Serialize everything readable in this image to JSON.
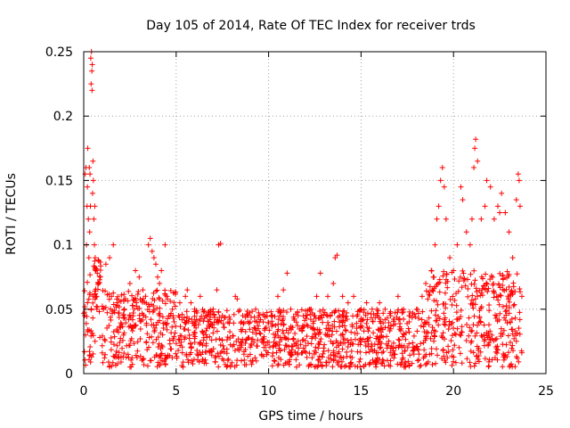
{
  "chart_data": {
    "type": "scatter",
    "title": "Day 105 of 2014, Rate Of TEC Index for receiver trds",
    "xlabel": "GPS time / hours",
    "ylabel": "ROTI / TECUs",
    "xlim": [
      0,
      25
    ],
    "ylim": [
      0,
      0.25
    ],
    "xticks": [
      0,
      5,
      10,
      15,
      20,
      25
    ],
    "xtick_labels": [
      "0",
      "5",
      "10",
      "15",
      "20",
      "25"
    ],
    "yticks": [
      0,
      0.05,
      0.1,
      0.15,
      0.2,
      0.25
    ],
    "ytick_labels": [
      "0",
      "0.05",
      "0.1",
      "0.15",
      "0.2",
      "0.25"
    ],
    "grid": true,
    "marker": "+",
    "color": "#ff0000",
    "series": [
      {
        "name": "ROTI",
        "points": [
          [
            0.05,
            0.045
          ],
          [
            0.08,
            0.155
          ],
          [
            0.1,
            0.03
          ],
          [
            0.12,
            0.16
          ],
          [
            0.15,
            0.1
          ],
          [
            0.18,
            0.13
          ],
          [
            0.2,
            0.145
          ],
          [
            0.22,
            0.175
          ],
          [
            0.25,
            0.12
          ],
          [
            0.28,
            0.09
          ],
          [
            0.3,
            0.16
          ],
          [
            0.32,
            0.11
          ],
          [
            0.34,
            0.155
          ],
          [
            0.36,
            0.13
          ],
          [
            0.38,
            0.245
          ],
          [
            0.4,
            0.225
          ],
          [
            0.42,
            0.25
          ],
          [
            0.44,
            0.235
          ],
          [
            0.45,
            0.22
          ],
          [
            0.46,
            0.24
          ],
          [
            0.48,
            0.14
          ],
          [
            0.5,
            0.165
          ],
          [
            0.52,
            0.15
          ],
          [
            0.55,
            0.12
          ],
          [
            0.58,
            0.1
          ],
          [
            0.6,
            0.13
          ],
          [
            0.62,
            0.09
          ],
          [
            0.65,
            0.08
          ],
          [
            0.7,
            0.06
          ],
          [
            0.8,
            0.07
          ],
          [
            1.2,
            0.085
          ],
          [
            1.4,
            0.09
          ],
          [
            1.5,
            0.06
          ],
          [
            1.6,
            0.1
          ],
          [
            1.8,
            0.055
          ],
          [
            2.2,
            0.05
          ],
          [
            2.5,
            0.07
          ],
          [
            2.8,
            0.08
          ],
          [
            3.0,
            0.075
          ],
          [
            3.2,
            0.065
          ],
          [
            3.5,
            0.1
          ],
          [
            3.6,
            0.105
          ],
          [
            3.7,
            0.095
          ],
          [
            3.8,
            0.09
          ],
          [
            3.9,
            0.085
          ],
          [
            4.0,
            0.075
          ],
          [
            4.1,
            0.07
          ],
          [
            4.2,
            0.08
          ],
          [
            4.4,
            0.1
          ],
          [
            4.5,
            0.06
          ],
          [
            4.8,
            0.05
          ],
          [
            5.2,
            0.055
          ],
          [
            5.5,
            0.06
          ],
          [
            5.6,
            0.065
          ],
          [
            5.8,
            0.055
          ],
          [
            6.0,
            0.05
          ],
          [
            6.3,
            0.06
          ],
          [
            6.6,
            0.045
          ],
          [
            7.0,
            0.05
          ],
          [
            7.2,
            0.065
          ],
          [
            7.3,
            0.1
          ],
          [
            7.4,
            0.101
          ],
          [
            7.5,
            0.045
          ],
          [
            7.8,
            0.04
          ],
          [
            8.2,
            0.06
          ],
          [
            8.3,
            0.058
          ],
          [
            8.6,
            0.045
          ],
          [
            9.0,
            0.04
          ],
          [
            9.3,
            0.05
          ],
          [
            9.5,
            0.04
          ],
          [
            9.8,
            0.035
          ],
          [
            10.2,
            0.045
          ],
          [
            10.5,
            0.06
          ],
          [
            10.8,
            0.065
          ],
          [
            11.0,
            0.078
          ],
          [
            11.2,
            0.05
          ],
          [
            11.5,
            0.04
          ],
          [
            11.8,
            0.035
          ],
          [
            12.0,
            0.045
          ],
          [
            12.3,
            0.05
          ],
          [
            12.6,
            0.06
          ],
          [
            12.8,
            0.078
          ],
          [
            13.2,
            0.06
          ],
          [
            13.5,
            0.07
          ],
          [
            13.6,
            0.09
          ],
          [
            13.7,
            0.092
          ],
          [
            14.0,
            0.06
          ],
          [
            14.3,
            0.055
          ],
          [
            14.6,
            0.06
          ],
          [
            15.0,
            0.05
          ],
          [
            15.3,
            0.055
          ],
          [
            15.6,
            0.05
          ],
          [
            16.0,
            0.055
          ],
          [
            16.3,
            0.05
          ],
          [
            16.6,
            0.045
          ],
          [
            17.0,
            0.06
          ],
          [
            17.3,
            0.05
          ],
          [
            17.6,
            0.045
          ],
          [
            18.0,
            0.05
          ],
          [
            18.3,
            0.06
          ],
          [
            18.5,
            0.07
          ],
          [
            18.8,
            0.08
          ],
          [
            19.0,
            0.1
          ],
          [
            19.1,
            0.12
          ],
          [
            19.2,
            0.13
          ],
          [
            19.3,
            0.15
          ],
          [
            19.4,
            0.16
          ],
          [
            19.5,
            0.145
          ],
          [
            19.6,
            0.12
          ],
          [
            19.8,
            0.09
          ],
          [
            20.0,
            0.08
          ],
          [
            20.2,
            0.1
          ],
          [
            20.4,
            0.145
          ],
          [
            20.5,
            0.135
          ],
          [
            20.7,
            0.11
          ],
          [
            20.9,
            0.1
          ],
          [
            21.0,
            0.12
          ],
          [
            21.1,
            0.16
          ],
          [
            21.15,
            0.175
          ],
          [
            21.2,
            0.182
          ],
          [
            21.3,
            0.165
          ],
          [
            21.5,
            0.12
          ],
          [
            21.7,
            0.13
          ],
          [
            21.8,
            0.15
          ],
          [
            22.0,
            0.145
          ],
          [
            22.2,
            0.12
          ],
          [
            22.4,
            0.13
          ],
          [
            22.5,
            0.125
          ],
          [
            22.6,
            0.14
          ],
          [
            22.8,
            0.125
          ],
          [
            23.0,
            0.11
          ],
          [
            23.2,
            0.09
          ],
          [
            23.4,
            0.135
          ],
          [
            23.5,
            0.155
          ],
          [
            23.55,
            0.15
          ],
          [
            23.6,
            0.13
          ],
          [
            23.7,
            0.06
          ]
        ]
      }
    ]
  }
}
